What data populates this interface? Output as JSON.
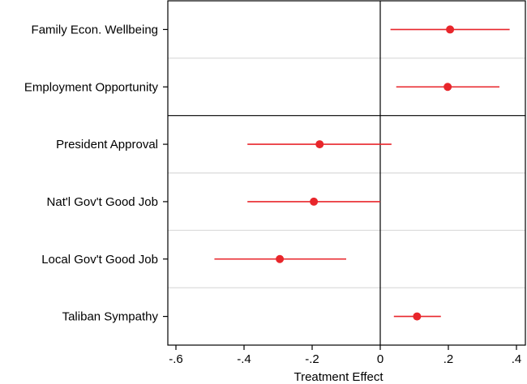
{
  "chart_data": {
    "type": "coefficient-plot",
    "title": "",
    "xlabel": "Treatment Effect",
    "xlim": [
      -0.62,
      0.42
    ],
    "xticks": [
      -0.6,
      -0.4,
      -0.2,
      0,
      0.2,
      0.4
    ],
    "xtick_labels": [
      "-.6",
      "-.4",
      "-.2",
      "0",
      ".2",
      ".4"
    ],
    "vline_at": 0,
    "grid": "horizontal-row-separators",
    "panel_split_after": 2,
    "colors": {
      "point": "#e8262b",
      "ci": "#e8262b",
      "grid": "#d9d9d9",
      "frame": "#000000"
    },
    "rows": [
      {
        "label": "Family Econ. Wellbeing",
        "estimate": 0.205,
        "ci_low": 0.03,
        "ci_high": 0.38
      },
      {
        "label": "Employment Opportunity",
        "estimate": 0.198,
        "ci_low": 0.047,
        "ci_high": 0.35
      },
      {
        "label": "President Approval",
        "estimate": -0.178,
        "ci_low": -0.39,
        "ci_high": 0.033
      },
      {
        "label": "Nat'l Gov't Good Job",
        "estimate": -0.195,
        "ci_low": -0.39,
        "ci_high": 0.0
      },
      {
        "label": "Local Gov't Good Job",
        "estimate": -0.295,
        "ci_low": -0.487,
        "ci_high": -0.1
      },
      {
        "label": "Taliban Sympathy",
        "estimate": 0.108,
        "ci_low": 0.04,
        "ci_high": 0.178
      }
    ]
  }
}
